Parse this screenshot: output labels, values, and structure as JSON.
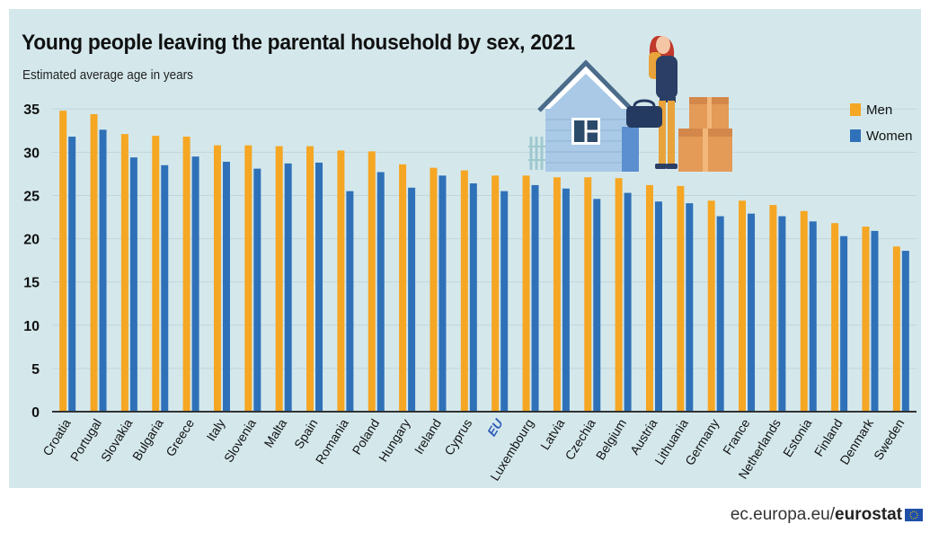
{
  "title": "Young people leaving the parental household by sex, 2021",
  "subtitle": "Estimated average age in years",
  "legend": {
    "men": "Men",
    "women": "Women"
  },
  "colors": {
    "men": "#f5a623",
    "women": "#2f71b8",
    "background": "#d4e8ec",
    "eu_label": "#2f5fb8"
  },
  "footer": {
    "domain": "ec.europa.eu/",
    "brand": "eurostat"
  },
  "chart_data": {
    "type": "bar",
    "categories": [
      "Croatia",
      "Portugal",
      "Slovakia",
      "Bulgaria",
      "Greece",
      "Italy",
      "Slovenia",
      "Malta",
      "Spain",
      "Romania",
      "Poland",
      "Hungary",
      "Ireland",
      "Cyprus",
      "EU",
      "Luxembourg",
      "Latvia",
      "Czechia",
      "Belgium",
      "Austria",
      "Lithuania",
      "Germany",
      "France",
      "Netherlands",
      "Estonia",
      "Finland",
      "Denmark",
      "Sweden"
    ],
    "highlight_category": "EU",
    "series": [
      {
        "name": "Men",
        "values": [
          34.8,
          34.4,
          32.1,
          31.9,
          31.8,
          30.8,
          30.8,
          30.7,
          30.7,
          30.2,
          30.1,
          28.6,
          28.2,
          27.9,
          27.3,
          27.3,
          27.1,
          27.1,
          27.0,
          26.2,
          26.1,
          24.4,
          24.4,
          23.9,
          23.2,
          21.8,
          21.4,
          19.1
        ]
      },
      {
        "name": "Women",
        "values": [
          31.8,
          32.6,
          29.4,
          28.5,
          29.5,
          28.9,
          28.1,
          28.7,
          28.8,
          25.5,
          27.7,
          25.9,
          27.3,
          26.4,
          25.5,
          26.2,
          25.8,
          24.6,
          25.3,
          24.3,
          24.1,
          22.6,
          22.9,
          22.6,
          22.0,
          20.3,
          20.9,
          18.6
        ]
      }
    ],
    "yticks": [
      0,
      5,
      10,
      15,
      20,
      25,
      30,
      35
    ],
    "ylim": [
      0,
      37
    ],
    "grid": true,
    "legend_position": "top-right"
  }
}
